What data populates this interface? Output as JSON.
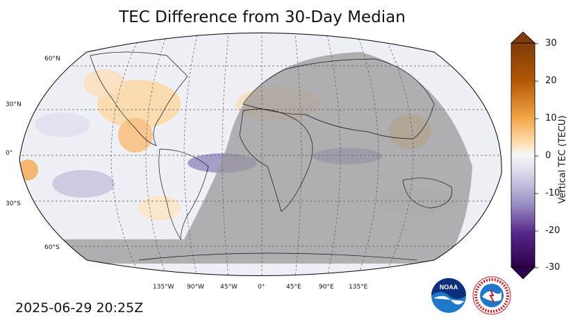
{
  "title": "TEC Difference from 30-Day Median",
  "timestamp": "2025-06-29 20:25Z",
  "colorbar": {
    "label": "Vertical TEC (TECU)",
    "ticks": [
      "30",
      "20",
      "10",
      "0",
      "-10",
      "-20",
      "-30"
    ],
    "min": -30,
    "max": 30
  },
  "lat_labels": [
    "60°N",
    "30°N",
    "0°",
    "30°S",
    "60°S"
  ],
  "lon_labels": [
    "135°W",
    "90°W",
    "45°W",
    "0°",
    "45°E",
    "90°E",
    "135°E"
  ],
  "logos": {
    "noaa": "NOAA",
    "nws": "NATIONAL WEATHER SERVICE"
  }
}
